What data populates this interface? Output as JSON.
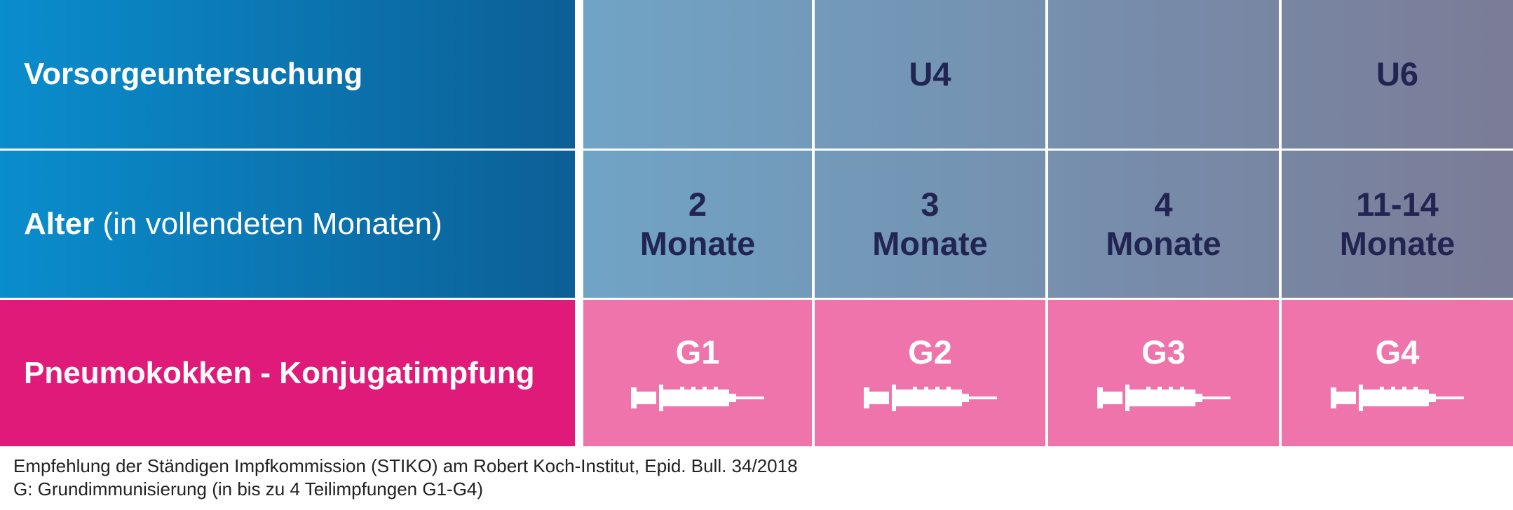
{
  "rows": [
    {
      "label": "Vorsorgeuntersuchung",
      "cells": [
        null,
        "U4",
        null,
        "U6"
      ]
    },
    {
      "label": "Alter",
      "label_note": " (in vollendeten Monaten)",
      "cells": [
        [
          "2",
          "Monate"
        ],
        [
          "3",
          "Monate"
        ],
        [
          "4",
          "Monate"
        ],
        [
          "11-14",
          "Monate"
        ]
      ]
    },
    {
      "label": "Pneumokokken - Konjugatimpfung",
      "cells": [
        "G1",
        "G2",
        "G3",
        "G4"
      ]
    }
  ],
  "footer": [
    "Empfehlung der Ständigen Impfkommission (STIKO) am Robert Koch-Institut, Epid. Bull. 34/2018",
    "G: Grundimmunisierung (in bis zu 4 Teilimpfungen G1-G4)"
  ]
}
